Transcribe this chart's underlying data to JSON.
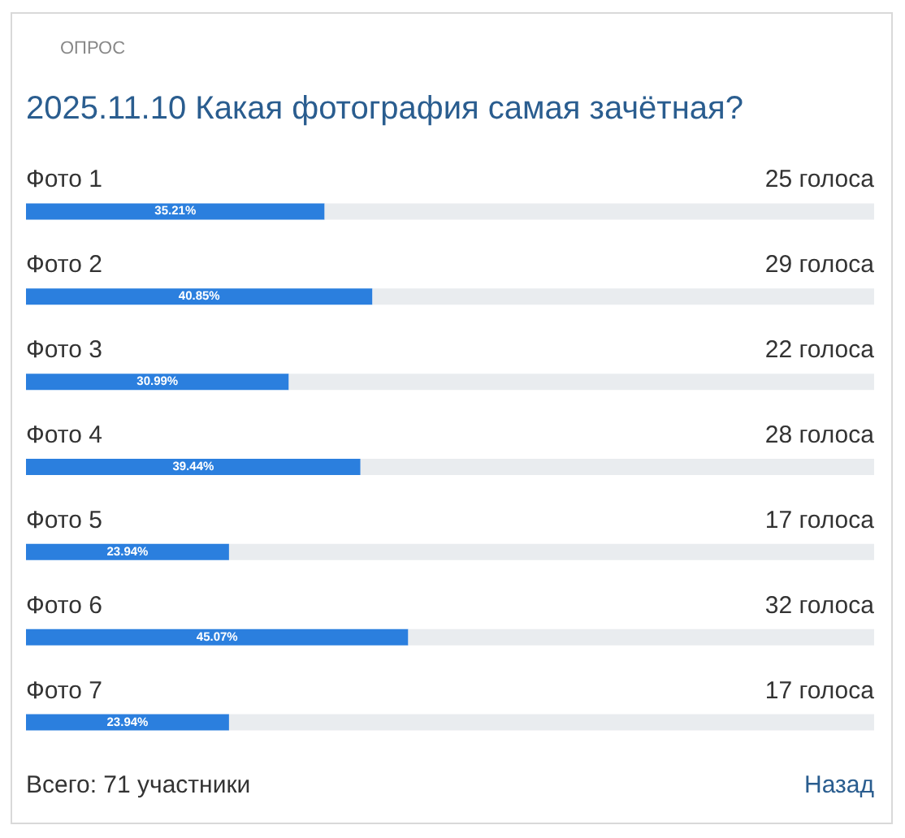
{
  "chart_data": {
    "type": "bar",
    "orientation": "horizontal",
    "stacked": true,
    "title": "2025.11.10 Какая фотография самая зачётная?",
    "categories": [
      "Фото 1",
      "Фото 2",
      "Фото 3",
      "Фото 4",
      "Фото 5",
      "Фото 6",
      "Фото 7"
    ],
    "xlim": [
      0,
      100
    ],
    "series": [
      {
        "color": "#2b7fde",
        "values": [
          35.21,
          40.85,
          30.99,
          39.44,
          23.94,
          45.07,
          23.94
        ],
        "value_labels": [
          "35.21%",
          "40.85%",
          "30.99%",
          "39.44%",
          "23.94%",
          "45.07%",
          "23.94%"
        ]
      },
      {
        "color": "#e9ecef",
        "values": [
          64.79,
          59.15,
          69.01,
          60.56,
          76.06,
          54.93,
          76.06
        ]
      }
    ],
    "annotations": [
      "ОПРОС",
      {
        "text": "25 голоса",
        "y": "Фото 1"
      },
      {
        "text": "29 голоса",
        "y": "Фото 2"
      },
      {
        "text": "22 голоса",
        "y": "Фото 3"
      },
      {
        "text": "28 голоса",
        "y": "Фото 4"
      },
      {
        "text": "17 голоса",
        "y": "Фото 5"
      },
      {
        "text": "32 голоса",
        "y": "Фото 6"
      },
      {
        "text": "17 голоса",
        "y": "Фото 7"
      },
      "Всего: 71 участники",
      "Назад"
    ],
    "tick_labels": "y",
    "grid": false,
    "legend": false
  }
}
